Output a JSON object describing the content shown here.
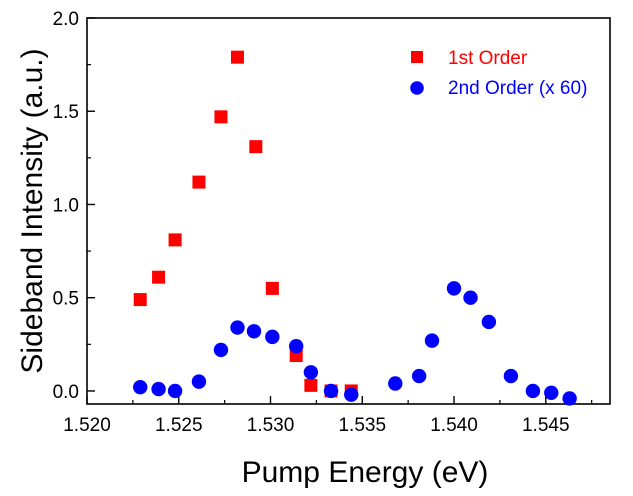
{
  "chart_data": {
    "type": "scatter",
    "title": "",
    "xlabel": "Pump Energy (eV)",
    "ylabel": "Sideband Intensity (a.u.)",
    "xlim": [
      1.52,
      1.5485
    ],
    "ylim": [
      -0.07,
      2.0
    ],
    "xticks": [
      "1.520",
      "1.525",
      "1.530",
      "1.535",
      "1.540",
      "1.545"
    ],
    "xtick_values": [
      1.52,
      1.525,
      1.53,
      1.535,
      1.54,
      1.545
    ],
    "yticks": [
      "0.0",
      "0.5",
      "1.0",
      "1.5",
      "2.0"
    ],
    "ytick_values": [
      0.0,
      0.5,
      1.0,
      1.5,
      2.0
    ],
    "grid": false,
    "legend_position": "top-right",
    "series": [
      {
        "name": "1st Order",
        "marker": "square",
        "color": "#ff0000",
        "x": [
          1.5229,
          1.5239,
          1.5248,
          1.5261,
          1.5273,
          1.5282,
          1.5292,
          1.5301,
          1.5314,
          1.5322,
          1.5333,
          1.5344
        ],
        "y": [
          0.49,
          0.61,
          0.81,
          1.12,
          1.47,
          1.79,
          1.31,
          0.55,
          0.19,
          0.03,
          0.0,
          0.0
        ]
      },
      {
        "name": "2nd Order (x 60)",
        "marker": "circle",
        "color": "#0000ff",
        "x": [
          1.5229,
          1.5239,
          1.5248,
          1.5261,
          1.5273,
          1.5282,
          1.5291,
          1.5301,
          1.5314,
          1.5322,
          1.5333,
          1.5344,
          1.5368,
          1.5381,
          1.5388,
          1.54,
          1.5409,
          1.5419,
          1.5431,
          1.5443,
          1.5453,
          1.5463
        ],
        "y": [
          0.02,
          0.01,
          0.0,
          0.05,
          0.22,
          0.34,
          0.32,
          0.29,
          0.24,
          0.1,
          0.0,
          -0.02,
          0.04,
          0.08,
          0.27,
          0.55,
          0.5,
          0.37,
          0.08,
          0.0,
          -0.01,
          -0.04
        ]
      }
    ]
  }
}
